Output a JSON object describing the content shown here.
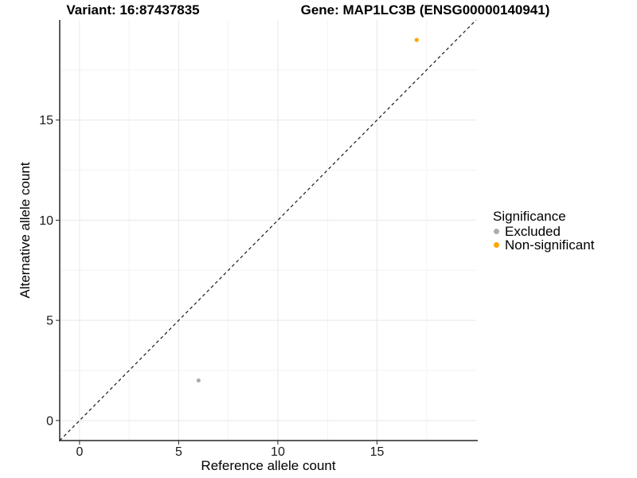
{
  "chart_data": {
    "type": "scatter",
    "titles": [
      "Variant: 16:87437835",
      "Gene: MAP1LC3B (ENSG00000140941)"
    ],
    "xlabel": "Reference allele count",
    "ylabel": "Alternative allele count",
    "xlim": [
      -1,
      20
    ],
    "ylim": [
      -1,
      20
    ],
    "x_ticks": [
      0,
      5,
      10,
      15
    ],
    "y_ticks": [
      0,
      5,
      10,
      15
    ],
    "x_minor_ticks": [
      2.5,
      7.5,
      12.5,
      17.5
    ],
    "y_minor_ticks": [
      2.5,
      7.5,
      12.5,
      17.5
    ],
    "grid": "major and minor light-gray gridlines on white panel",
    "identity_line": {
      "style": "dashed",
      "slope": 1,
      "intercept": 0,
      "color": "#1a1a1a"
    },
    "series": [
      {
        "name": "Excluded",
        "color": "#adadad",
        "points": [
          {
            "x": 6,
            "y": 2
          }
        ]
      },
      {
        "name": "Non-significant",
        "color": "#FFA500",
        "points": [
          {
            "x": 17,
            "y": 19
          }
        ]
      }
    ],
    "legend": {
      "title": "Significance",
      "position": "right"
    }
  }
}
